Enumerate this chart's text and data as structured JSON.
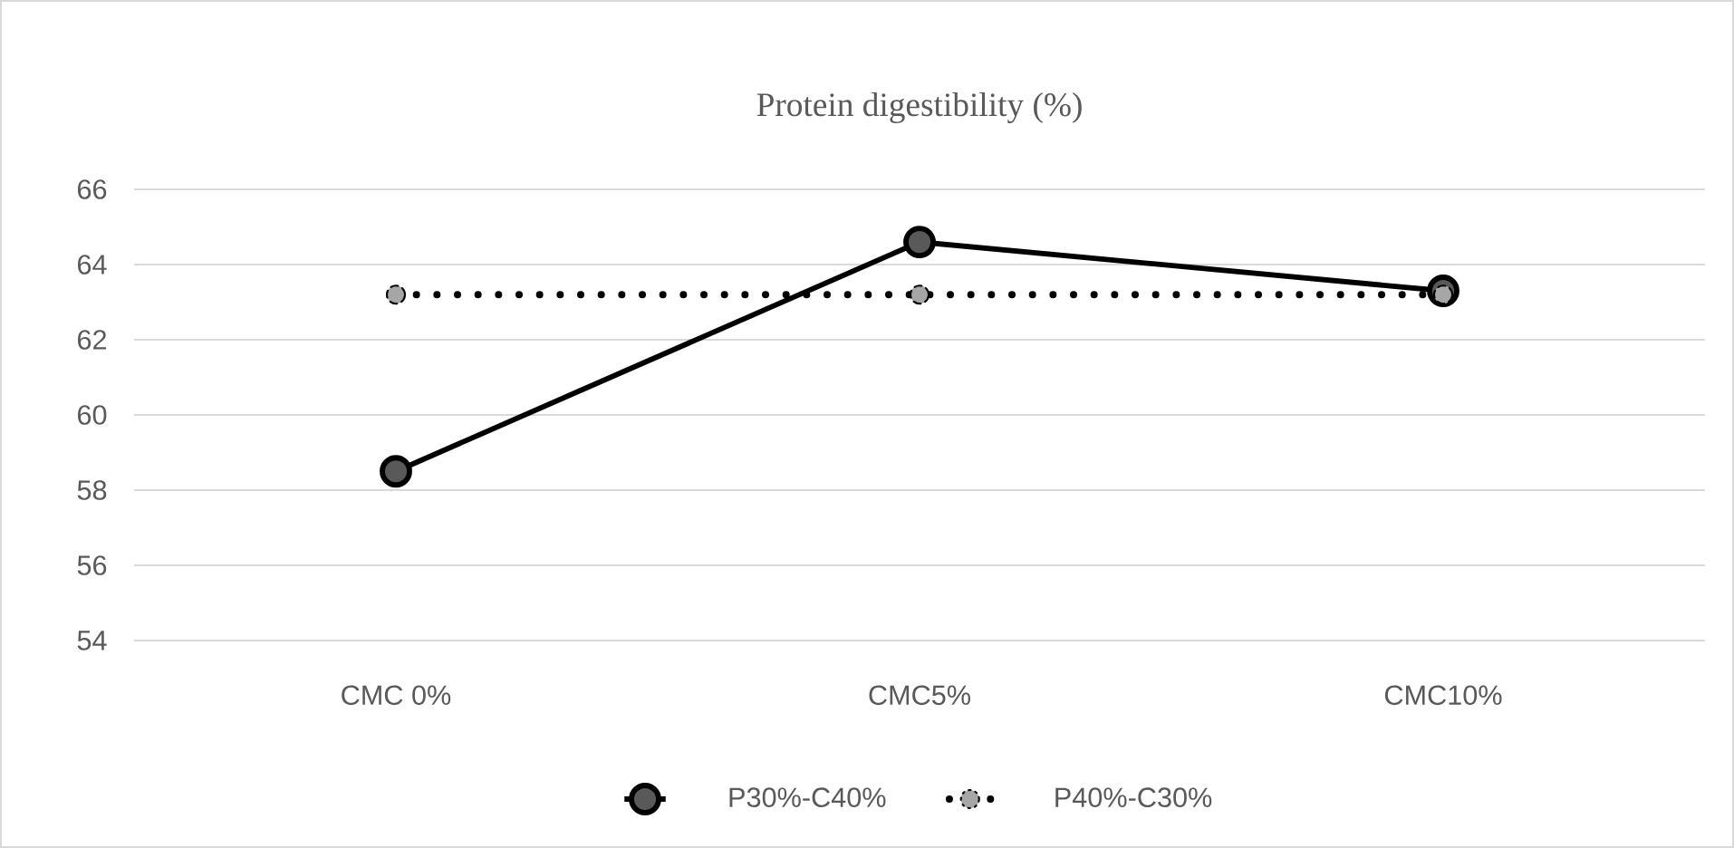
{
  "chart_data": {
    "type": "line",
    "title": "Protein digestibility (%)",
    "categories": [
      "CMC 0%",
      "CMC5%",
      "CMC10%"
    ],
    "series": [
      {
        "name": "P30%-C40%",
        "color": "#595959",
        "values": [
          58.5,
          64.6,
          63.3
        ],
        "line_style": "solid"
      },
      {
        "name": "P40%-C30%",
        "color": "#a6a6a6",
        "values": [
          63.2,
          63.2,
          63.2
        ],
        "line_style": "dotted"
      }
    ],
    "ylim": [
      54,
      66
    ],
    "yticks": [
      54,
      56,
      58,
      60,
      62,
      64,
      66
    ],
    "grid": "y",
    "legend": "bottom",
    "marker": "circle"
  }
}
